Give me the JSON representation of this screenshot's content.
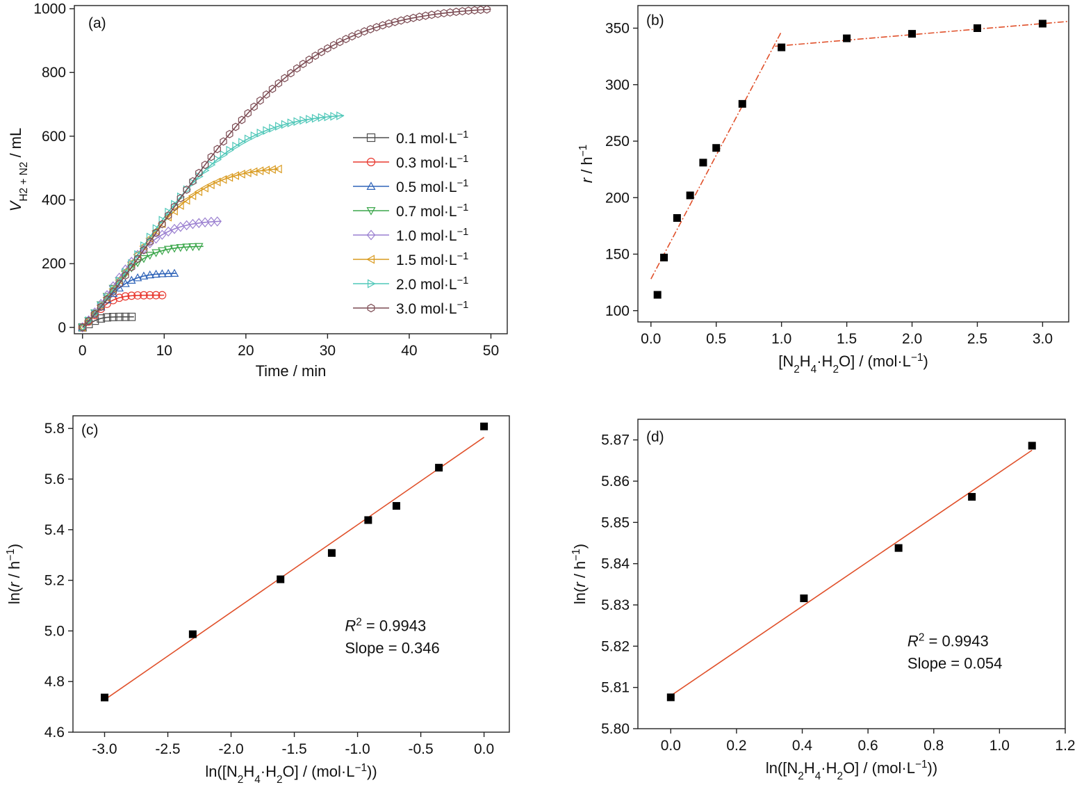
{
  "chart_data": [
    {
      "panel": "(a)",
      "type": "line",
      "title": "",
      "xlabel": "Time / min",
      "ylabel": {
        "main": "V",
        "sub": "H",
        "sub2": "2",
        "mid": " + N",
        "sub3": "2",
        "tail": " / mL"
      },
      "xlim": [
        -1,
        52
      ],
      "ylim": [
        -20,
        1010
      ],
      "xticks": [
        0,
        10,
        20,
        30,
        40,
        50
      ],
      "yticks": [
        0,
        200,
        400,
        600,
        800,
        1000
      ],
      "legend": "center-right",
      "series": [
        {
          "name": "0.1 mol·L",
          "sup": "−1",
          "color": "#4d4d4d",
          "marker": "square",
          "end": 6.3,
          "vmax": 33,
          "tau": 1.5
        },
        {
          "name": "0.3 mol·L",
          "sup": "−1",
          "color": "#e8382f",
          "marker": "circle",
          "end": 10.0,
          "vmax": 101,
          "tau": 2.5
        },
        {
          "name": "0.5 mol·L",
          "sup": "−1",
          "color": "#2e63b8",
          "marker": "triangle-up",
          "end": 11.5,
          "vmax": 170,
          "tau": 3.8
        },
        {
          "name": "0.7 mol·L",
          "sup": "−1",
          "color": "#3aa64a",
          "marker": "triangle-down",
          "end": 14.8,
          "vmax": 255,
          "tau": 5.0
        },
        {
          "name": "1.0 mol·L",
          "sup": "−1",
          "color": "#9a7fd0",
          "marker": "diamond",
          "end": 17.0,
          "vmax": 335,
          "tau": 6.2
        },
        {
          "name": "1.5 mol·L",
          "sup": "−1",
          "color": "#d99a1e",
          "marker": "triangle-left",
          "end": 24.0,
          "vmax": 503,
          "tau": 9.5
        },
        {
          "name": "2.0 mol·L",
          "sup": "−1",
          "color": "#4ec7b8",
          "marker": "triangle-right",
          "end": 32.0,
          "vmax": 672,
          "tau": 12.5
        },
        {
          "name": "3.0 mol·L",
          "sup": "−1",
          "color": "#7b4a52",
          "marker": "hexagon",
          "end": 50.0,
          "vmax": 1007,
          "tau": 19.0
        }
      ]
    },
    {
      "panel": "(b)",
      "type": "scatter",
      "title": "",
      "xlabel": "[N2H4·H2O] / (mol·L−1)",
      "ylabel": "r / h−1",
      "xlim": [
        -0.1,
        3.2
      ],
      "ylim": [
        90,
        370
      ],
      "xticks": [
        0.0,
        0.5,
        1.0,
        1.5,
        2.0,
        2.5,
        3.0
      ],
      "xtick_labels": [
        "0.0",
        "0.5",
        "1.0",
        "1.5",
        "2.0",
        "2.5",
        "3.0"
      ],
      "yticks": [
        100,
        150,
        200,
        250,
        300,
        350
      ],
      "points": {
        "x": [
          0.05,
          0.1,
          0.2,
          0.3,
          0.4,
          0.5,
          0.7,
          1.0,
          1.5,
          2.0,
          2.5,
          3.0
        ],
        "y": [
          114,
          147,
          182,
          202,
          231,
          244,
          283,
          333,
          341,
          345,
          350,
          354
        ]
      },
      "fit_lines": [
        {
          "x": [
            0.0,
            1.0
          ],
          "y": [
            128,
            347
          ],
          "style": "dash-dot",
          "color": "#e0502a"
        },
        {
          "x": [
            0.95,
            3.2
          ],
          "y": [
            334,
            356
          ],
          "style": "dash-dot",
          "color": "#e0502a"
        }
      ]
    },
    {
      "panel": "(c)",
      "type": "scatter",
      "title": "",
      "xlabel": "ln([N2H4·H2O] / (mol·L−1))",
      "ylabel": "ln(r / h−1)",
      "xlim": [
        -3.25,
        0.2
      ],
      "ylim": [
        4.6,
        5.85
      ],
      "xticks": [
        -3.0,
        -2.5,
        -2.0,
        -1.5,
        -1.0,
        -0.5,
        0.0
      ],
      "xtick_labels": [
        "-3.0",
        "-2.5",
        "-2.0",
        "-1.5",
        "-1.0",
        "-0.5",
        "0.0"
      ],
      "yticks": [
        4.6,
        4.8,
        5.0,
        5.2,
        5.4,
        5.6,
        5.8
      ],
      "ytick_labels": [
        "4.6",
        "4.8",
        "5.0",
        "5.2",
        "5.4",
        "5.6",
        "5.8"
      ],
      "points": {
        "x": [
          -3.0,
          -2.303,
          -1.609,
          -1.204,
          -0.916,
          -0.693,
          -0.357,
          0.0
        ],
        "y": [
          4.737,
          4.987,
          5.204,
          5.308,
          5.438,
          5.494,
          5.645,
          5.808
        ]
      },
      "fit_lines": [
        {
          "x": [
            -3.0,
            0.0
          ],
          "y": [
            4.728,
            5.765
          ],
          "style": "solid",
          "color": "#e0502a"
        }
      ],
      "annotation": {
        "r2_sup": "2",
        "r2_rest": " = 0.9943",
        "slope": "Slope = 0.346",
        "pos": [
          -1.1,
          5.0
        ]
      }
    },
    {
      "panel": "(d)",
      "type": "scatter",
      "title": "",
      "xlabel": "ln([N2H4·H2O] / (mol·L−1))",
      "ylabel": "ln(r / h−1)",
      "xlim": [
        -0.1,
        1.2
      ],
      "ylim": [
        5.8,
        5.875
      ],
      "xticks": [
        0.0,
        0.2,
        0.4,
        0.6,
        0.8,
        1.0,
        1.2
      ],
      "xtick_labels": [
        "0.0",
        "0.2",
        "0.4",
        "0.6",
        "0.8",
        "1.0",
        "1.2"
      ],
      "yticks": [
        5.8,
        5.81,
        5.82,
        5.83,
        5.84,
        5.85,
        5.86,
        5.87
      ],
      "ytick_labels": [
        "5.80",
        "5.81",
        "5.82",
        "5.83",
        "5.84",
        "5.85",
        "5.86",
        "5.87"
      ],
      "points": {
        "x": [
          0.0,
          0.405,
          0.693,
          0.916,
          1.099
        ],
        "y": [
          5.8076,
          5.8316,
          5.8438,
          5.8562,
          5.8686
        ]
      },
      "fit_lines": [
        {
          "x": [
            0.0,
            1.099
          ],
          "y": [
            5.808,
            5.8675
          ],
          "style": "solid",
          "color": "#e0502a"
        }
      ],
      "annotation": {
        "r2_sup": "2",
        "r2_rest": " = 0.9943",
        "slope": "Slope = 0.054",
        "pos": [
          0.72,
          5.82
        ]
      }
    }
  ]
}
